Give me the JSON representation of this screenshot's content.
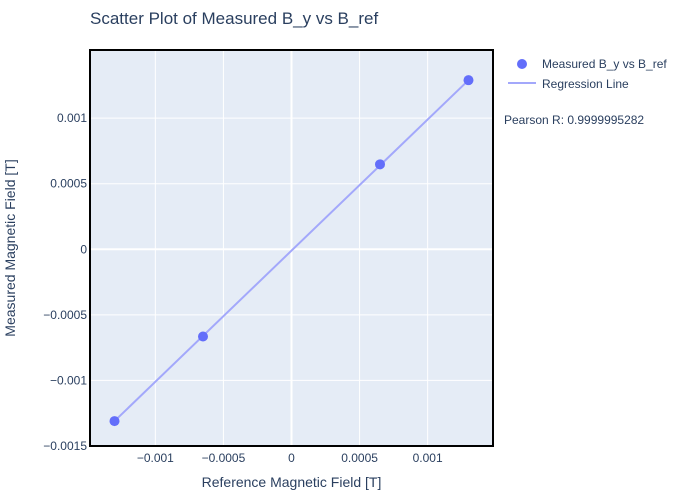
{
  "chart_data": {
    "type": "scatter",
    "title": "Scatter Plot of Measured B_y vs B_ref",
    "xlabel": "Reference Magnetic Field [T]",
    "ylabel": "Measured Magnetic Field [T]",
    "xlim": [
      -0.00148,
      0.00148
    ],
    "ylim": [
      -0.0015,
      0.00152
    ],
    "grid": true,
    "legend_position": "top-right",
    "x_ticks": [
      {
        "value": -0.001,
        "label": "−0.001"
      },
      {
        "value": -0.0005,
        "label": "−0.0005"
      },
      {
        "value": 0,
        "label": "0"
      },
      {
        "value": 0.0005,
        "label": "0.0005"
      },
      {
        "value": 0.001,
        "label": "0.001"
      }
    ],
    "y_ticks": [
      {
        "value": -0.0015,
        "label": "−0.0015"
      },
      {
        "value": -0.001,
        "label": "−0.001"
      },
      {
        "value": -0.0005,
        "label": "−0.0005"
      },
      {
        "value": 0,
        "label": "0"
      },
      {
        "value": 0.0005,
        "label": "0.0005"
      },
      {
        "value": 0.001,
        "label": "0.001"
      }
    ],
    "series": [
      {
        "name": "Measured B_y vs B_ref",
        "mode": "markers",
        "color": "#636efa",
        "x": [
          -0.0013,
          -0.00065,
          0.00065,
          0.0013
        ],
        "y": [
          -0.00131,
          -0.000665,
          0.000648,
          0.00129
        ]
      },
      {
        "name": "Regression Line",
        "mode": "lines",
        "color": "#a3a8fb",
        "x": [
          -0.0013,
          0.0013
        ],
        "y": [
          -0.00131,
          0.00129
        ]
      }
    ],
    "annotation": "Pearson R: 0.9999995282"
  },
  "colors": {
    "plot_background": "#e5ecf6",
    "grid": "#ffffff",
    "text": "#2a3f5f",
    "axis_line": "#000000"
  }
}
